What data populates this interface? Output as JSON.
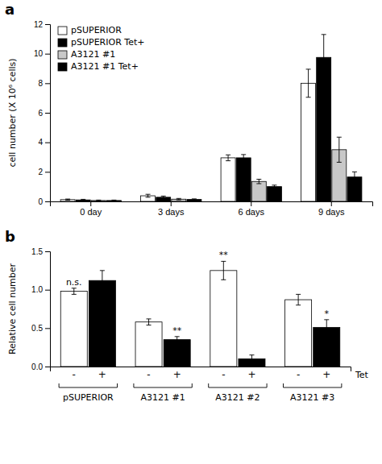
{
  "chart_data": [
    {
      "type": "bar",
      "title": "a",
      "ylabel": "cell number (X 10⁶ cells)",
      "categories": [
        "0 day",
        "3 days",
        "6 days",
        "9 days"
      ],
      "series": [
        {
          "name": "pSUPERIOR",
          "color": "white",
          "values": [
            0.12,
            0.38,
            2.95,
            8.0
          ],
          "errors": [
            0.04,
            0.1,
            0.2,
            0.95
          ]
        },
        {
          "name": "pSUPERIOR Tet+",
          "color": "black",
          "values": [
            0.1,
            0.28,
            2.95,
            9.75
          ],
          "errors": [
            0.04,
            0.08,
            0.22,
            1.55
          ]
        },
        {
          "name": "A3121 #1",
          "color": "#c8c8c8",
          "values": [
            0.06,
            0.15,
            1.35,
            3.5
          ],
          "errors": [
            0.03,
            0.05,
            0.15,
            0.85
          ]
        },
        {
          "name": "A3121 #1 Tet+",
          "color": "black",
          "values": [
            0.06,
            0.13,
            1.0,
            1.65
          ],
          "errors": [
            0.03,
            0.04,
            0.1,
            0.35
          ]
        }
      ],
      "ylim": [
        0,
        12
      ],
      "yticks": [
        0,
        2,
        4,
        6,
        8,
        10,
        12
      ],
      "legend": "upper left",
      "grid": false
    },
    {
      "type": "bar",
      "title": "b",
      "ylabel": "Relative cell number",
      "xlabel": "Tet",
      "categories": [
        "pSUPERIOR",
        "A3121 #1",
        "A3121 #2",
        "A3121 #3"
      ],
      "series": [
        {
          "name": "-",
          "color": "white",
          "values": [
            0.98,
            0.58,
            1.25,
            0.87
          ],
          "errors": [
            0.04,
            0.04,
            0.12,
            0.07
          ]
        },
        {
          "name": "+",
          "color": "black",
          "values": [
            1.12,
            0.35,
            0.1,
            0.51
          ],
          "errors": [
            0.13,
            0.04,
            0.05,
            0.1
          ]
        }
      ],
      "annotations": [
        {
          "text": "n.s.",
          "category": "pSUPERIOR",
          "series": "-"
        },
        {
          "text": "**",
          "category": "A3121 #1",
          "series": "+"
        },
        {
          "text": "**",
          "category": "A3121 #2",
          "series": "-"
        },
        {
          "text": "*",
          "category": "A3121 #3",
          "series": "+"
        }
      ],
      "ylim": [
        0,
        1.5
      ],
      "yticks": [
        {
          "value": 0,
          "label": "0.0"
        },
        0.5,
        {
          "value": 1.0,
          "label": "1.0"
        },
        1.5
      ],
      "grid": false
    }
  ]
}
